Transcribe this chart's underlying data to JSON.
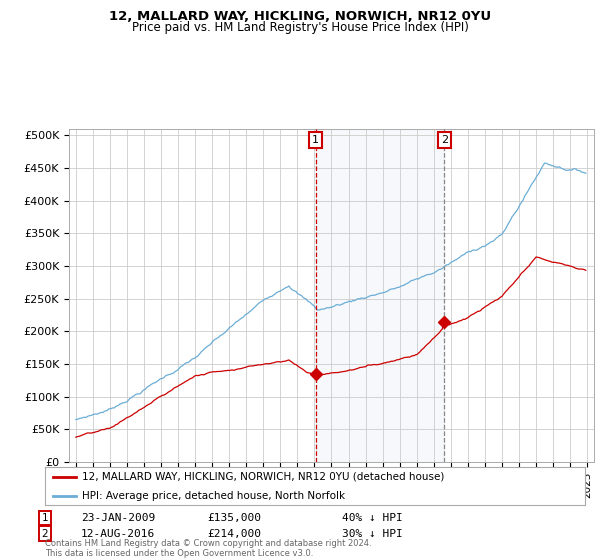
{
  "title_line1": "12, MALLARD WAY, HICKLING, NORWICH, NR12 0YU",
  "title_line2": "Price paid vs. HM Land Registry's House Price Index (HPI)",
  "ylim": [
    0,
    510000
  ],
  "yticks": [
    0,
    50000,
    100000,
    150000,
    200000,
    250000,
    300000,
    350000,
    400000,
    450000,
    500000
  ],
  "ytick_labels": [
    "£0",
    "£50K",
    "£100K",
    "£150K",
    "£200K",
    "£250K",
    "£300K",
    "£350K",
    "£400K",
    "£450K",
    "£500K"
  ],
  "sale1_date_str": "23-JAN-2009",
  "sale1_price": 135000,
  "sale1_hpi_diff": "40% ↓ HPI",
  "sale1_x": 2009.07,
  "sale2_date_str": "12-AUG-2016",
  "sale2_price": 214000,
  "sale2_hpi_diff": "30% ↓ HPI",
  "sale2_x": 2016.62,
  "legend_line1": "12, MALLARD WAY, HICKLING, NORWICH, NR12 0YU (detached house)",
  "legend_line2": "HPI: Average price, detached house, North Norfolk",
  "footnote": "Contains HM Land Registry data © Crown copyright and database right 2024.\nThis data is licensed under the Open Government Licence v3.0.",
  "sale_color": "#cc0000",
  "hpi_color": "#6baed6",
  "vline1_color": "#cc0000",
  "vline2_color": "#888888",
  "span_color": "#dce6f1",
  "grid_color": "#cccccc",
  "plot_bg": "#ffffff"
}
